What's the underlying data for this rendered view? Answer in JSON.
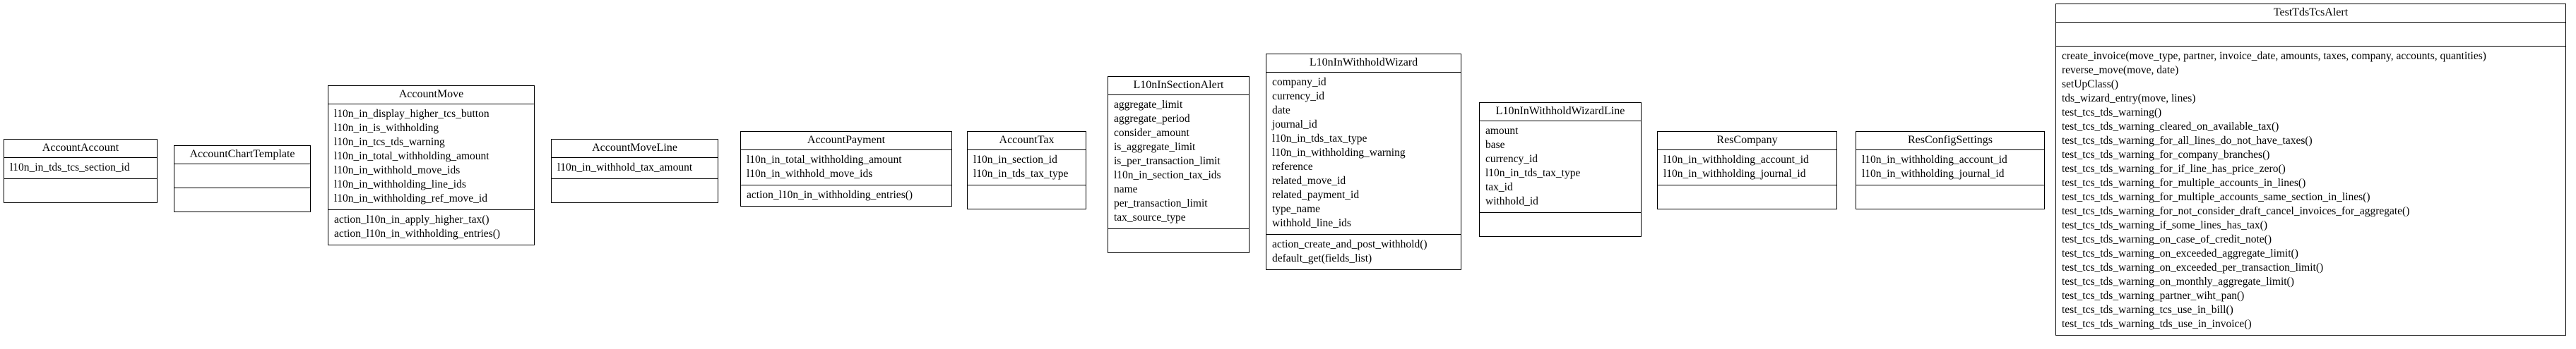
{
  "classes": [
    {
      "name": "AccountAccount",
      "attributes": [
        "l10n_in_tds_tcs_section_id"
      ],
      "methods": []
    },
    {
      "name": "AccountChartTemplate",
      "attributes": [],
      "methods": []
    },
    {
      "name": "AccountMove",
      "attributes": [
        "l10n_in_display_higher_tcs_button",
        "l10n_in_is_withholding",
        "l10n_in_tcs_tds_warning",
        "l10n_in_total_withholding_amount",
        "l10n_in_withhold_move_ids",
        "l10n_in_withholding_line_ids",
        "l10n_in_withholding_ref_move_id"
      ],
      "methods": [
        "action_l10n_in_apply_higher_tax()",
        "action_l10n_in_withholding_entries()"
      ]
    },
    {
      "name": "AccountMoveLine",
      "attributes": [
        "l10n_in_withhold_tax_amount"
      ],
      "methods": []
    },
    {
      "name": "AccountPayment",
      "attributes": [
        "l10n_in_total_withholding_amount",
        "l10n_in_withhold_move_ids"
      ],
      "methods": [
        "action_l10n_in_withholding_entries()"
      ]
    },
    {
      "name": "AccountTax",
      "attributes": [
        "l10n_in_section_id",
        "l10n_in_tds_tax_type"
      ],
      "methods": []
    },
    {
      "name": "L10nInSectionAlert",
      "attributes": [
        "aggregate_limit",
        "aggregate_period",
        "consider_amount",
        "is_aggregate_limit",
        "is_per_transaction_limit",
        "l10n_in_section_tax_ids",
        "name",
        "per_transaction_limit",
        "tax_source_type"
      ],
      "methods": []
    },
    {
      "name": "L10nInWithholdWizard",
      "attributes": [
        "company_id",
        "currency_id",
        "date",
        "journal_id",
        "l10n_in_tds_tax_type",
        "l10n_in_withholding_warning",
        "reference",
        "related_move_id",
        "related_payment_id",
        "type_name",
        "withhold_line_ids"
      ],
      "methods": [
        "action_create_and_post_withhold()",
        "default_get(fields_list)"
      ]
    },
    {
      "name": "L10nInWithholdWizardLine",
      "attributes": [
        "amount",
        "base",
        "currency_id",
        "l10n_in_tds_tax_type",
        "tax_id",
        "withhold_id"
      ],
      "methods": []
    },
    {
      "name": "ResCompany",
      "attributes": [
        "l10n_in_withholding_account_id",
        "l10n_in_withholding_journal_id"
      ],
      "methods": []
    },
    {
      "name": "ResConfigSettings",
      "attributes": [
        "l10n_in_withholding_account_id",
        "l10n_in_withholding_journal_id"
      ],
      "methods": []
    },
    {
      "name": "TestTdsTcsAlert",
      "attributes": [],
      "methods": [
        "create_invoice(move_type, partner, invoice_date, amounts, taxes, company, accounts, quantities)",
        "reverse_move(move, date)",
        "setUpClass()",
        "tds_wizard_entry(move, lines)",
        "test_tcs_tds_warning()",
        "test_tcs_tds_warning_cleared_on_available_tax()",
        "test_tcs_tds_warning_for_all_lines_do_not_have_taxes()",
        "test_tcs_tds_warning_for_company_branches()",
        "test_tcs_tds_warning_for_if_line_has_price_zero()",
        "test_tcs_tds_warning_for_multiple_accounts_in_lines()",
        "test_tcs_tds_warning_for_multiple_accounts_same_section_in_lines()",
        "test_tcs_tds_warning_for_not_consider_draft_cancel_invoices_for_aggregate()",
        "test_tcs_tds_warning_if_some_lines_has_tax()",
        "test_tcs_tds_warning_on_case_of_credit_note()",
        "test_tcs_tds_warning_on_exceeded_aggregate_limit()",
        "test_tcs_tds_warning_on_exceeded_per_transaction_limit()",
        "test_tcs_tds_warning_on_monthly_aggregate_limit()",
        "test_tcs_tds_warning_partner_wiht_pan()",
        "test_tcs_tds_warning_tcs_use_in_bill()",
        "test_tcs_tds_warning_tds_use_in_invoice()"
      ]
    }
  ]
}
